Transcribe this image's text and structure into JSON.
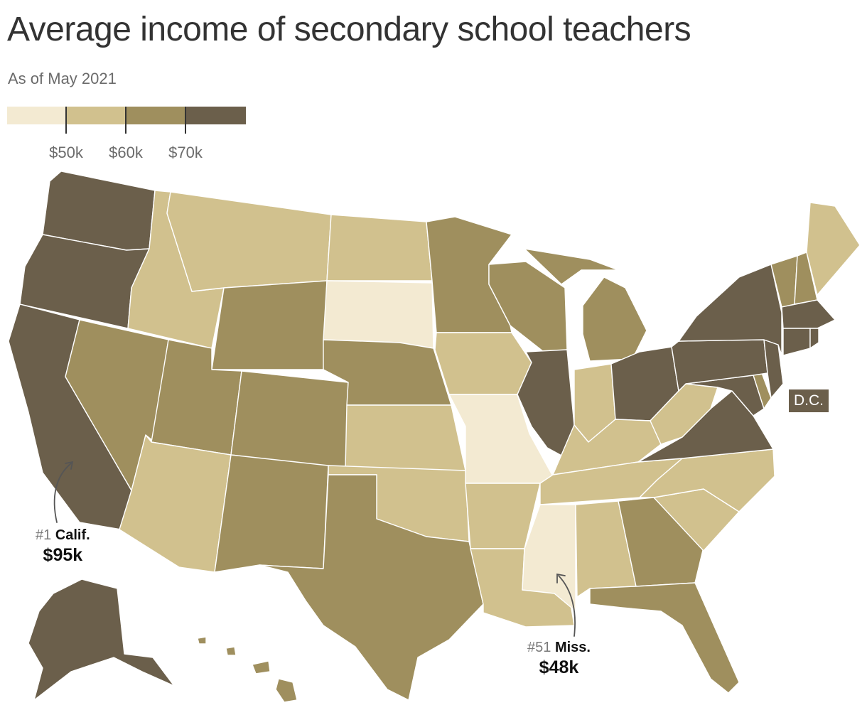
{
  "title": "Average income of secondary school teachers",
  "subtitle": "As of May 2021",
  "legend": {
    "ticks": [
      "$50k",
      "$60k",
      "$70k"
    ],
    "bins": [
      {
        "color": "#f3ead2"
      },
      {
        "color": "#d1c18e"
      },
      {
        "color": "#9f8f5e"
      },
      {
        "color": "#6b5f4b"
      }
    ]
  },
  "states": {
    "WA": "#6b5f4b",
    "OR": "#6b5f4b",
    "CA": "#6b5f4b",
    "AK": "#6b5f4b",
    "NV": "#9f8f5e",
    "ID": "#d1c18e",
    "MT": "#d1c18e",
    "WY": "#9f8f5e",
    "UT": "#9f8f5e",
    "AZ": "#d1c18e",
    "CO": "#9f8f5e",
    "NM": "#9f8f5e",
    "ND": "#d1c18e",
    "SD": "#f3ead2",
    "NE": "#9f8f5e",
    "KS": "#d1c18e",
    "OK": "#d1c18e",
    "TX": "#9f8f5e",
    "MN": "#9f8f5e",
    "IA": "#d1c18e",
    "MO": "#f3ead2",
    "AR": "#d1c18e",
    "LA": "#d1c18e",
    "WI": "#9f8f5e",
    "IL": "#6b5f4b",
    "MI": "#9f8f5e",
    "IN": "#d1c18e",
    "OH": "#6b5f4b",
    "KY": "#d1c18e",
    "TN": "#d1c18e",
    "MS": "#f3ead2",
    "AL": "#d1c18e",
    "GA": "#9f8f5e",
    "FL": "#9f8f5e",
    "SC": "#d1c18e",
    "NC": "#d1c18e",
    "VA": "#6b5f4b",
    "WV": "#d1c18e",
    "MD": "#6b5f4b",
    "DE": "#9f8f5e",
    "PA": "#6b5f4b",
    "NJ": "#6b5f4b",
    "NY": "#6b5f4b",
    "CT": "#6b5f4b",
    "RI": "#6b5f4b",
    "MA": "#6b5f4b",
    "VT": "#9f8f5e",
    "NH": "#9f8f5e",
    "ME": "#d1c18e",
    "HI": "#9f8f5e"
  },
  "dc_label": "D.C.",
  "callouts": {
    "top": {
      "rank": "#1",
      "name": "Calif.",
      "value": "$95k"
    },
    "bottom": {
      "rank": "#51",
      "name": "Miss.",
      "value": "$48k"
    }
  }
}
